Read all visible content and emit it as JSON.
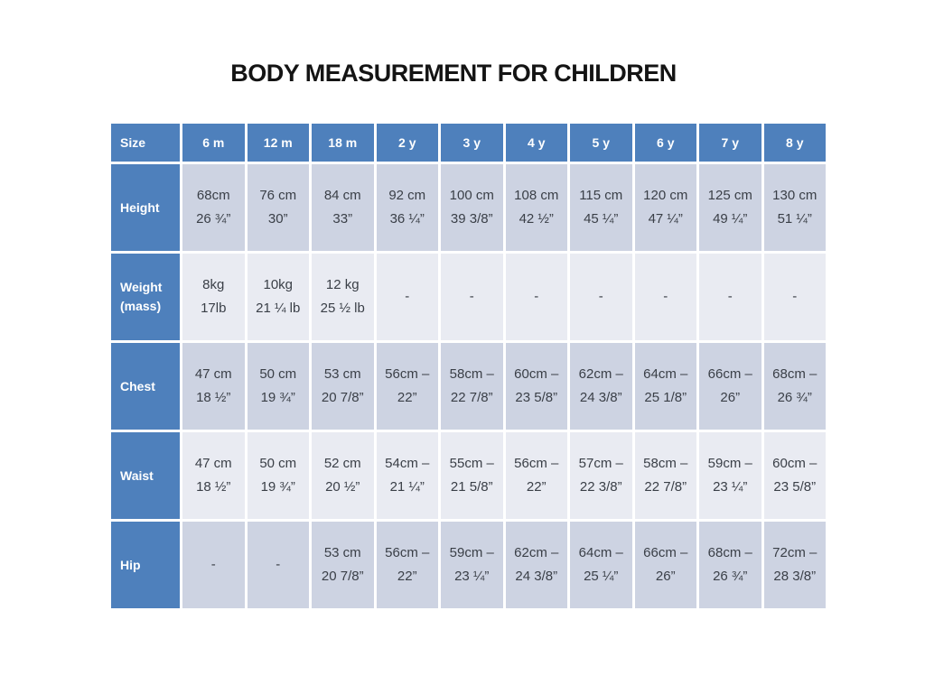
{
  "title": "BODY MEASUREMENT FOR CHILDREN",
  "colors": {
    "header_blue": "#4e80bc",
    "band_dark": "#cdd3e2",
    "band_light": "#e9ebf2",
    "cell_text": "#3a3f47",
    "title_color": "#141414",
    "grid_gap": "#ffffff"
  },
  "table": {
    "header": [
      "Size",
      "6 m",
      "12 m",
      "18 m",
      "2 y",
      "3 y",
      "4 y",
      "5 y",
      "6 y",
      "7 y",
      "8 y"
    ],
    "rows": [
      {
        "label": "Height",
        "cells": [
          "68cm\n26 ¾”",
          "76 cm\n30”",
          "84 cm\n33”",
          "92 cm\n36 ¼”",
          "100 cm\n39 3/8”",
          "108 cm\n42 ½”",
          "115 cm\n45 ¼”",
          "120 cm\n47 ¼”",
          "125 cm\n49 ¼”",
          "130 cm\n51 ¼”"
        ]
      },
      {
        "label": "Weight\n(mass)",
        "cells": [
          "8kg\n17lb",
          "10kg\n21 ¼ lb",
          "12 kg\n25 ½ lb",
          "-",
          "-",
          "-",
          "-",
          "-",
          "-",
          "-"
        ]
      },
      {
        "label": "Chest",
        "cells": [
          "47 cm\n18 ½”",
          "50 cm\n19 ¾”",
          "53 cm\n20 7/8”",
          "56cm –\n22”",
          "58cm –\n22 7/8”",
          "60cm –\n23 5/8”",
          "62cm –\n24 3/8”",
          "64cm –\n25 1/8”",
          "66cm –\n26”",
          "68cm –\n26 ¾”"
        ]
      },
      {
        "label": "Waist",
        "cells": [
          "47 cm\n18 ½”",
          "50 cm\n19 ¾”",
          "52 cm\n20 ½”",
          "54cm –\n21 ¼”",
          "55cm –\n21 5/8”",
          "56cm –\n22”",
          "57cm –\n22 3/8”",
          "58cm –\n22 7/8”",
          "59cm –\n23 ¼”",
          "60cm –\n23 5/8”"
        ]
      },
      {
        "label": "Hip",
        "cells": [
          "-",
          "-",
          "53 cm\n20 7/8”",
          "56cm –\n22”",
          "59cm –\n23 ¼”",
          "62cm –\n24 3/8”",
          "64cm –\n25 ¼”",
          "66cm –\n26”",
          "68cm –\n26 ¾”",
          "72cm –\n28 3/8”"
        ]
      }
    ]
  }
}
